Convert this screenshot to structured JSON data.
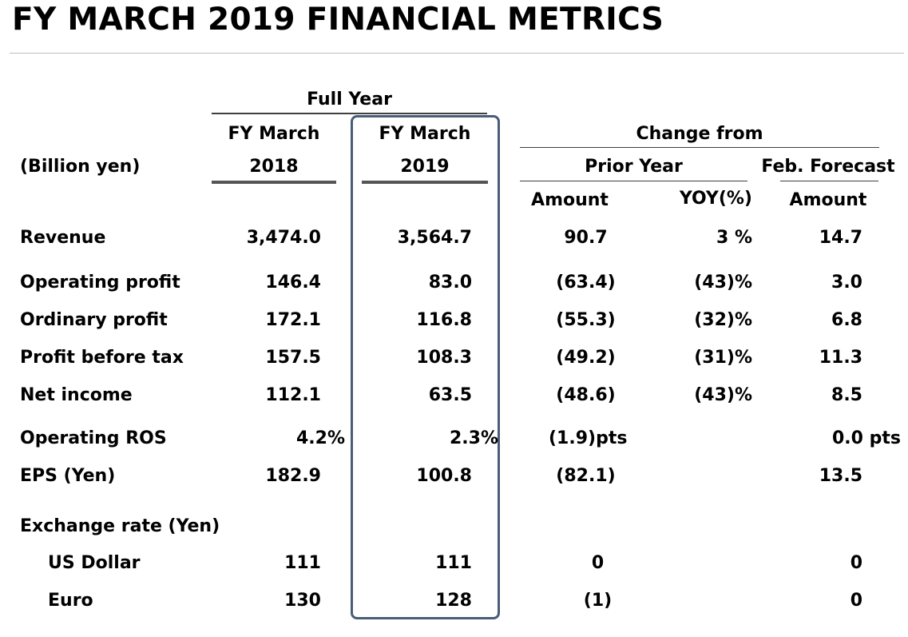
{
  "title": "FY MARCH 2019 FINANCIAL METRICS",
  "colors": {
    "frame": "#4a5d78",
    "rule": "#bfbfbf",
    "text": "#000000"
  },
  "header": {
    "full_year": "Full Year",
    "fy2018": [
      "FY March",
      "2018"
    ],
    "fy2019": [
      "FY March",
      "2019"
    ],
    "unit_label": "(Billion yen)",
    "change_from": "Change from",
    "prior_year": "Prior Year",
    "feb_forecast": "Feb. Forecast",
    "amount": "Amount",
    "yoy": "YOY(%)",
    "amount2": "Amount"
  },
  "rows": [
    {
      "label": "Revenue",
      "fy2018": "3,474.0",
      "fy2019": "3,564.7",
      "py_amount": "90.7",
      "yoy": "3 %",
      "ff_amount": "14.7"
    },
    {
      "label": "Operating profit",
      "fy2018": "146.4",
      "fy2019": "83.0",
      "py_amount": "(63.4)",
      "yoy": "(43)%",
      "ff_amount": "3.0"
    },
    {
      "label": "Ordinary profit",
      "fy2018": "172.1",
      "fy2019": "116.8",
      "py_amount": "(55.3)",
      "yoy": "(32)%",
      "ff_amount": "6.8"
    },
    {
      "label": "Profit before tax",
      "fy2018": "157.5",
      "fy2019": "108.3",
      "py_amount": "(49.2)",
      "yoy": "(31)%",
      "ff_amount": "11.3"
    },
    {
      "label": "Net income",
      "fy2018": "112.1",
      "fy2019": "63.5",
      "py_amount": "(48.6)",
      "yoy": "(43)%",
      "ff_amount": "8.5"
    },
    {
      "label": "Operating ROS",
      "fy2018": "4.2%",
      "fy2019": "2.3%",
      "py_amount": "(1.9)pts",
      "yoy": "",
      "ff_amount": "0.0 pts"
    },
    {
      "label": "EPS (Yen)",
      "fy2018": "182.9",
      "fy2019": "100.8",
      "py_amount": "(82.1)",
      "yoy": "",
      "ff_amount": "13.5"
    },
    {
      "label": "Exchange rate (Yen)",
      "fy2018": "",
      "fy2019": "",
      "py_amount": "",
      "yoy": "",
      "ff_amount": ""
    },
    {
      "label": "US Dollar",
      "fy2018": "111",
      "fy2019": "111",
      "py_amount": "0",
      "yoy": "",
      "ff_amount": "0"
    },
    {
      "label": "Euro",
      "fy2018": "130",
      "fy2019": "128",
      "py_amount": "(1)",
      "yoy": "",
      "ff_amount": "0"
    }
  ]
}
